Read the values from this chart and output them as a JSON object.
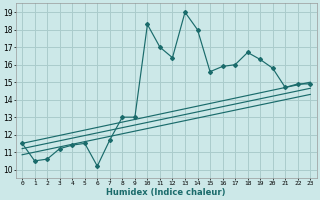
{
  "xlabel": "Humidex (Indice chaleur)",
  "bg_color": "#cce8e8",
  "grid_color": "#aacccc",
  "line_color": "#1a6b6b",
  "xlim": [
    -0.5,
    23.5
  ],
  "ylim": [
    9.5,
    19.5
  ],
  "xticks": [
    0,
    1,
    2,
    3,
    4,
    5,
    6,
    7,
    8,
    9,
    10,
    11,
    12,
    13,
    14,
    15,
    16,
    17,
    18,
    19,
    20,
    21,
    22,
    23
  ],
  "yticks": [
    10,
    11,
    12,
    13,
    14,
    15,
    16,
    17,
    18,
    19
  ],
  "series": [
    [
      0,
      11.5
    ],
    [
      1,
      10.5
    ],
    [
      2,
      10.6
    ],
    [
      3,
      11.2
    ],
    [
      4,
      11.4
    ],
    [
      5,
      11.5
    ],
    [
      6,
      10.2
    ],
    [
      7,
      11.7
    ],
    [
      8,
      13.0
    ],
    [
      9,
      13.0
    ],
    [
      10,
      18.3
    ],
    [
      11,
      17.0
    ],
    [
      12,
      16.4
    ],
    [
      13,
      19.0
    ],
    [
      14,
      18.0
    ],
    [
      15,
      15.6
    ],
    [
      16,
      15.9
    ],
    [
      17,
      16.0
    ],
    [
      18,
      16.7
    ],
    [
      19,
      16.3
    ],
    [
      20,
      15.8
    ],
    [
      21,
      14.7
    ],
    [
      22,
      14.9
    ],
    [
      23,
      14.9
    ]
  ],
  "reg_line1": [
    [
      0,
      11.5
    ],
    [
      23,
      15.0
    ]
  ],
  "reg_line2": [
    [
      0,
      11.2
    ],
    [
      23,
      14.65
    ]
  ],
  "reg_line3": [
    [
      0,
      10.85
    ],
    [
      23,
      14.3
    ]
  ]
}
